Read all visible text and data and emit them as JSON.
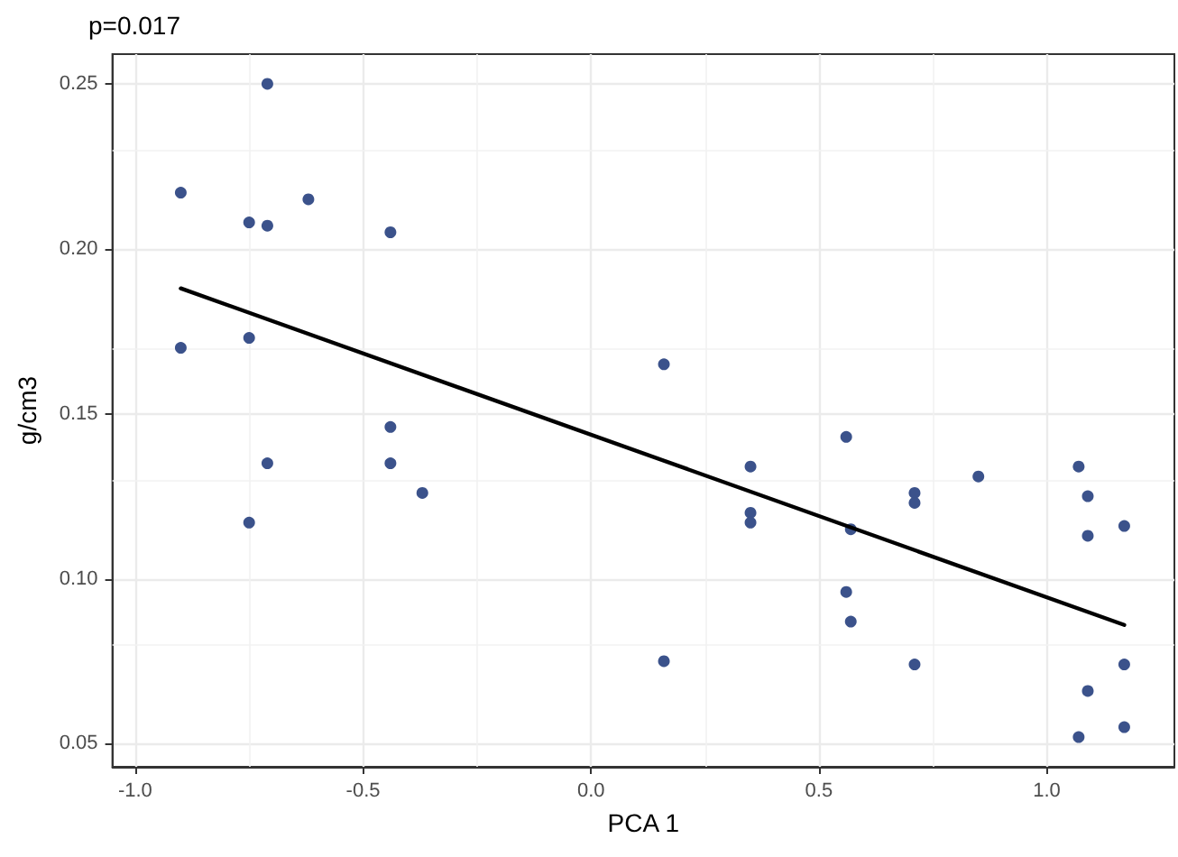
{
  "chart_data": {
    "type": "scatter",
    "title": "p=0.017",
    "xlabel": "PCA 1",
    "ylabel": "g/cm3",
    "xlim": [
      -1.05,
      1.28
    ],
    "ylim": [
      0.043,
      0.259
    ],
    "xticks": [
      {
        "value": -1.0,
        "label": "-1.0"
      },
      {
        "value": -0.5,
        "label": "-0.5"
      },
      {
        "value": 0,
        "label": "0.0"
      },
      {
        "value": 0.5,
        "label": "0.5"
      },
      {
        "value": 1.0,
        "label": "1.0"
      }
    ],
    "yticks": [
      {
        "value": 0.05,
        "label": "0.05"
      },
      {
        "value": 0.1,
        "label": "0.10"
      },
      {
        "value": 0.15,
        "label": "0.15"
      },
      {
        "value": 0.2,
        "label": "0.20"
      },
      {
        "value": 0.25,
        "label": "0.25"
      }
    ],
    "grid": true,
    "marker": "circle",
    "series": [
      {
        "color": "#3b528b",
        "x": [
          -0.9,
          -0.9,
          -0.75,
          -0.75,
          -0.75,
          -0.71,
          -0.71,
          -0.71,
          -0.62,
          -0.44,
          -0.44,
          -0.44,
          -0.37,
          0.16,
          0.16,
          0.35,
          0.35,
          0.35,
          0.56,
          0.56,
          0.57,
          0.57,
          0.71,
          0.71,
          0.71,
          0.85,
          1.07,
          1.07,
          1.09,
          1.09,
          1.09,
          1.17,
          1.17,
          1.17
        ],
        "values": [
          0.217,
          0.17,
          0.208,
          0.173,
          0.117,
          0.25,
          0.207,
          0.135,
          0.215,
          0.205,
          0.146,
          0.135,
          0.126,
          0.165,
          0.075,
          0.134,
          0.12,
          0.117,
          0.143,
          0.096,
          0.115,
          0.087,
          0.126,
          0.123,
          0.074,
          0.131,
          0.134,
          0.052,
          0.125,
          0.113,
          0.066,
          0.116,
          0.074,
          0.055
        ]
      },
      {
        "type": "line",
        "color": "#000000",
        "x": [
          -0.9,
          1.17
        ],
        "values": [
          0.188,
          0.086
        ],
        "marker": "none",
        "line_style": "solid"
      }
    ]
  }
}
